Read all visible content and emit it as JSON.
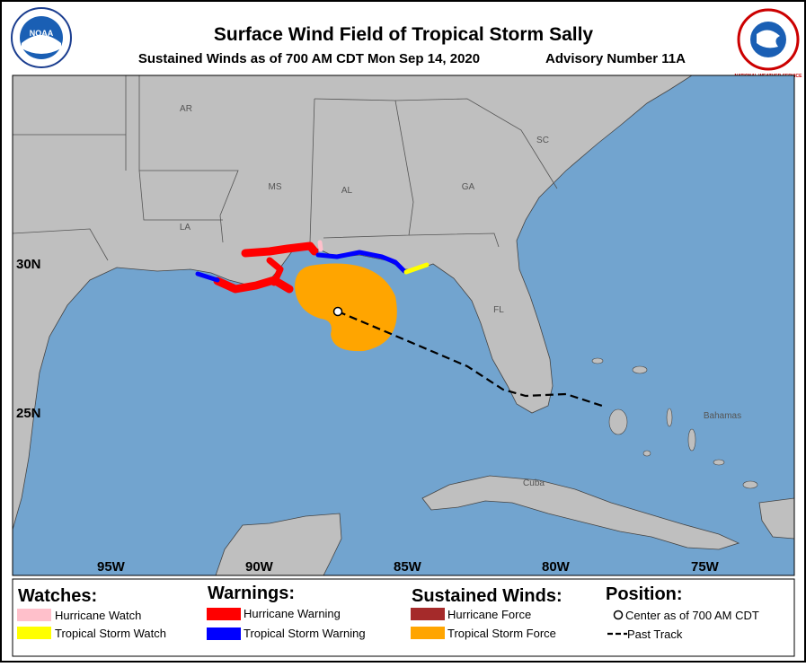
{
  "header": {
    "title": "Surface Wind Field of Tropical Storm Sally",
    "subtitle": "Sustained Winds as of 700 AM CDT Mon Sep 14, 2020",
    "advisory": "Advisory Number 11A",
    "logos": {
      "noaa": "NOAA",
      "nws": "NATIONAL WEATHER SERVICE"
    }
  },
  "map": {
    "region_labels": [
      "AR",
      "SC",
      "MS",
      "AL",
      "GA",
      "LA",
      "FL",
      "Bahamas",
      "Cuba"
    ],
    "latitude_labels": [
      "30N",
      "25N"
    ],
    "longitude_labels": [
      "95W",
      "90W",
      "85W",
      "80W",
      "75W"
    ]
  },
  "legend": {
    "watches": {
      "heading": "Watches:",
      "items": [
        "Hurricane Watch",
        "Tropical Storm Watch"
      ]
    },
    "warnings": {
      "heading": "Warnings:",
      "items": [
        "Hurricane Warning",
        "Tropical Storm Warning"
      ]
    },
    "winds": {
      "heading": "Sustained Winds:",
      "items": [
        "Hurricane Force",
        "Tropical Storm Force"
      ]
    },
    "position": {
      "heading": "Position:",
      "items": [
        "Center as of 700 AM CDT",
        "Past Track"
      ]
    }
  }
}
